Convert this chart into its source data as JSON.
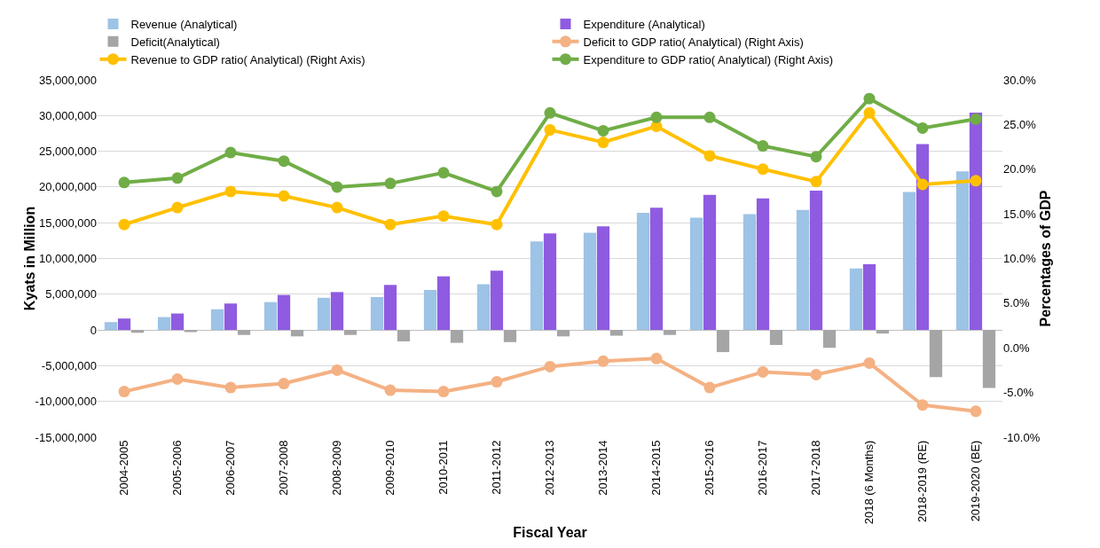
{
  "chart_data": {
    "type": "bar",
    "xlabel": "Fiscal Year",
    "ylabel": "Kyats in Million",
    "y2label": "Percentages of GDP",
    "categories": [
      "2004-2005",
      "2005-2006",
      "2006-2007",
      "2007-2008",
      "2008-2009",
      "2009-2010",
      "2010-2011",
      "2011-2012",
      "2012-2013",
      "2013-2014",
      "2014-2015",
      "2015-2016",
      "2016-2017",
      "2017-2018",
      "2018 (6 Months)",
      "2018-2019 (RE)",
      "2019-2020 (BE)"
    ],
    "series": [
      {
        "name": "Revenue (Analytical)",
        "color": "#9dc3e6",
        "values": [
          1100000,
          1800000,
          2900000,
          3900000,
          4500000,
          4600000,
          5600000,
          6400000,
          12400000,
          13600000,
          16400000,
          15700000,
          16200000,
          16800000,
          8600000,
          19300000,
          22200000
        ]
      },
      {
        "name": "Expenditure (Analytical)",
        "color": "#8f5be0",
        "values": [
          1600000,
          2300000,
          3700000,
          4900000,
          5300000,
          6300000,
          7500000,
          8300000,
          13500000,
          14500000,
          17100000,
          18900000,
          18400000,
          19500000,
          9200000,
          26000000,
          30400000
        ]
      },
      {
        "name": "Deficit(Analytical)",
        "color": "#a5a5a5",
        "values": [
          -400000,
          -300000,
          -700000,
          -900000,
          -700000,
          -1600000,
          -1800000,
          -1700000,
          -900000,
          -800000,
          -700000,
          -3100000,
          -2100000,
          -2500000,
          -500000,
          -6600000,
          -8100000
        ]
      },
      {
        "name": "Deficit to GDP ratio( Analytical) (Right Axis)",
        "type": "line",
        "axis": "y2",
        "color": "#f4b183",
        "values": [
          -4.9,
          -3.5,
          -4.45,
          -4.0,
          -2.5,
          -4.75,
          -4.9,
          -3.8,
          -2.1,
          -1.5,
          -1.2,
          -4.45,
          -2.7,
          -3.0,
          -1.7,
          -6.4,
          -7.1
        ]
      },
      {
        "name": "Revenue to GDP ratio( Analytical) (Right Axis)",
        "type": "line",
        "axis": "y2",
        "color": "#ffc000",
        "values": [
          13.8,
          15.7,
          17.5,
          17.0,
          15.7,
          13.8,
          14.75,
          13.8,
          24.4,
          23.0,
          24.8,
          21.5,
          20.0,
          18.6,
          26.3,
          18.3,
          18.7
        ]
      },
      {
        "name": "Expenditure to GDP ratio( Analytical) (Right Axis)",
        "type": "line",
        "axis": "y2",
        "color": "#70ad47",
        "values": [
          18.5,
          19.0,
          21.85,
          20.9,
          18.0,
          18.4,
          19.6,
          17.5,
          26.3,
          24.3,
          25.8,
          25.8,
          22.6,
          21.4,
          27.9,
          24.6,
          25.6
        ]
      }
    ],
    "ylim": [
      -15000000,
      35000000
    ],
    "yticks": [
      {
        "value": -15000000,
        "label": "-15,000,000"
      },
      {
        "value": -10000000,
        "label": "-10,000,000"
      },
      {
        "value": -5000000,
        "label": "-5,000,000"
      },
      0,
      {
        "value": 5000000,
        "label": "5,000,000"
      },
      {
        "value": 10000000,
        "label": "10,000,000"
      },
      {
        "value": 15000000,
        "label": "15,000,000"
      },
      {
        "value": 20000000,
        "label": "20,000,000"
      },
      {
        "value": 25000000,
        "label": "25,000,000"
      },
      {
        "value": 30000000,
        "label": "30,000,000"
      },
      {
        "value": 35000000,
        "label": "35,000,000"
      }
    ],
    "y2lim": [
      -10,
      30
    ],
    "y2ticks": [
      {
        "value": -10,
        "label": "-10.0%"
      },
      {
        "value": -5,
        "label": "-5.0%"
      },
      {
        "value": 0,
        "label": "0.0%"
      },
      {
        "value": 5,
        "label": "5.0%"
      },
      {
        "value": 10,
        "label": "10.0%"
      },
      {
        "value": 15,
        "label": "15.0%"
      },
      {
        "value": 20,
        "label": "20.0%"
      },
      {
        "value": 25,
        "label": "25.0%"
      },
      {
        "value": 30,
        "label": "30.0%"
      }
    ],
    "grid": "y",
    "legend": "top",
    "marker": "circle",
    "line_style": "solid"
  }
}
